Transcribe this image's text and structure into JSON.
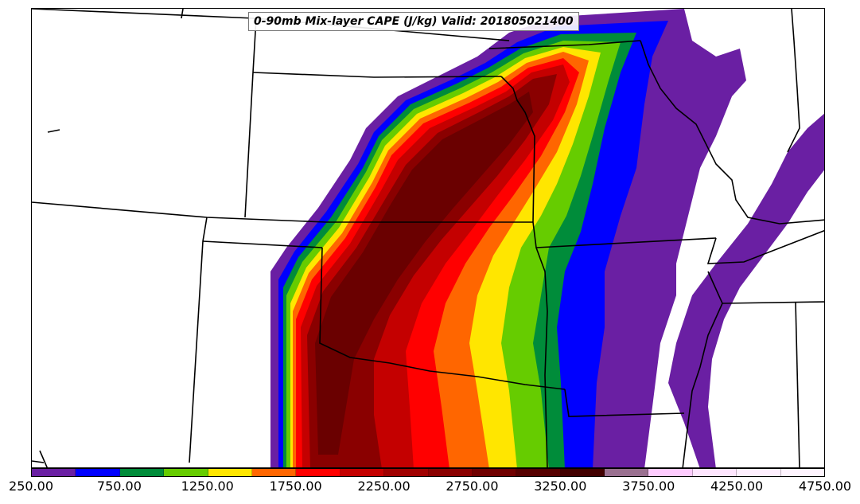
{
  "title": "0-90mb Mix-layer CAPE (J/kg) Valid: 201805021400",
  "colorbar": {
    "colors": [
      "#6a1fa3",
      "#0000ff",
      "#008c3a",
      "#66cc00",
      "#ffe600",
      "#ff6600",
      "#ff0000",
      "#c40000",
      "#a00000",
      "#8a0000",
      "#700000",
      "#560000",
      "#420000",
      "#9a7090",
      "#ffccff",
      "#ffe6ff",
      "#fff0ff",
      "#fff5ff"
    ],
    "tick_labels": [
      "250.00",
      "750.00",
      "1250.00",
      "1750.00",
      "2250.00",
      "2750.00",
      "3250.00",
      "3750.00",
      "4250.00",
      "4750.00"
    ]
  },
  "map": {
    "field": "0-90mb Mix-layer CAPE",
    "units": "J/kg",
    "levels": [
      250,
      500,
      750,
      1000,
      1250,
      1500,
      1750,
      2000,
      2250,
      2500,
      2750,
      3000,
      3250,
      3500,
      3750,
      4000,
      4250,
      4500,
      4750
    ]
  }
}
